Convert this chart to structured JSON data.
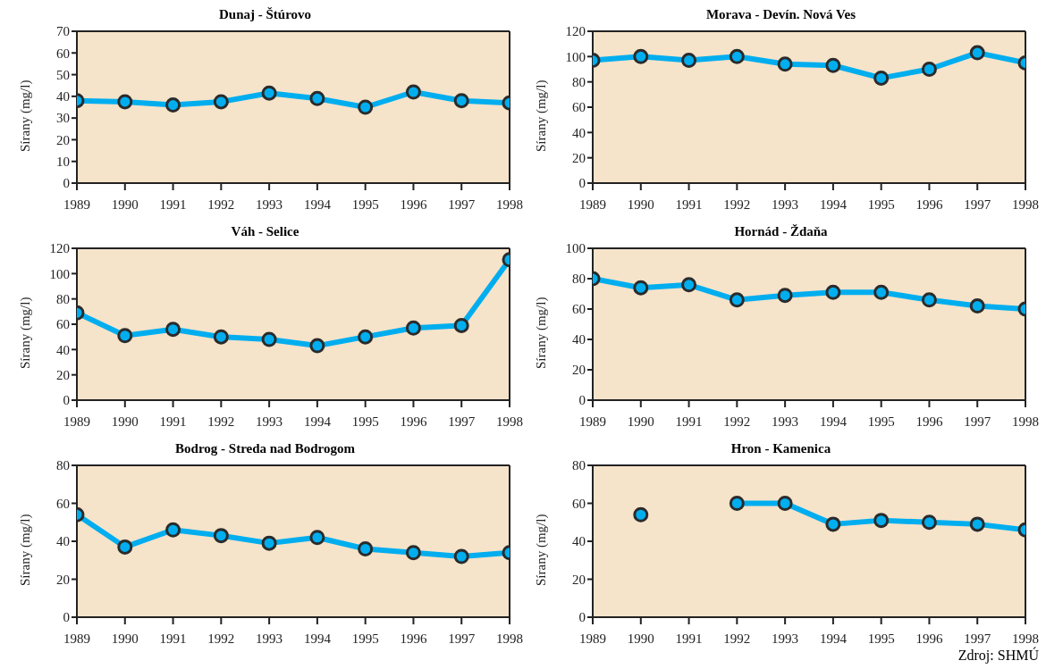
{
  "chart_data": [
    {
      "type": "line",
      "title": "Dunaj - Štúrovo",
      "ylabel": "Sírany (mg/l)",
      "x": [
        1989,
        1990,
        1991,
        1992,
        1993,
        1994,
        1995,
        1996,
        1997,
        1998
      ],
      "xlim": [
        1989,
        1998
      ],
      "xticks": [
        1989,
        1990,
        1991,
        1992,
        1993,
        1994,
        1995,
        1996,
        1997,
        1998
      ],
      "ylim": [
        0,
        70
      ],
      "yticks": [
        0,
        10,
        20,
        30,
        40,
        50,
        60,
        70
      ],
      "marker": "circle",
      "line_style": "solid",
      "grid": false,
      "legend": false,
      "series": [
        {
          "color": "#00aeef",
          "values": [
            38,
            37.5,
            36,
            37.5,
            41.5,
            39,
            35,
            42,
            38,
            37
          ]
        }
      ]
    },
    {
      "type": "line",
      "title": "Morava - Devín. Nová Ves",
      "ylabel": "Sírany (mg/l)",
      "x": [
        1989,
        1990,
        1991,
        1992,
        1993,
        1994,
        1995,
        1996,
        1997,
        1998
      ],
      "xlim": [
        1989,
        1998
      ],
      "xticks": [
        1989,
        1990,
        1991,
        1992,
        1993,
        1994,
        1995,
        1996,
        1997,
        1998
      ],
      "ylim": [
        0,
        120
      ],
      "yticks": [
        0,
        20,
        40,
        60,
        80,
        100,
        120
      ],
      "marker": "circle",
      "line_style": "solid",
      "grid": false,
      "legend": false,
      "series": [
        {
          "color": "#00aeef",
          "values": [
            97,
            100,
            97,
            100,
            94,
            93,
            83,
            90,
            103,
            95
          ]
        }
      ]
    },
    {
      "type": "line",
      "title": "Váh - Selice",
      "ylabel": "Sírany (mg/l)",
      "x": [
        1989,
        1990,
        1991,
        1992,
        1993,
        1994,
        1995,
        1996,
        1997,
        1998
      ],
      "xlim": [
        1989,
        1998
      ],
      "xticks": [
        1989,
        1990,
        1991,
        1992,
        1993,
        1994,
        1995,
        1996,
        1997,
        1998
      ],
      "ylim": [
        0,
        120
      ],
      "yticks": [
        0,
        20,
        40,
        60,
        80,
        100,
        120
      ],
      "marker": "circle",
      "line_style": "solid",
      "grid": false,
      "legend": false,
      "series": [
        {
          "color": "#00aeef",
          "values": [
            69,
            51,
            56,
            50,
            48,
            43,
            50,
            57,
            59,
            111
          ]
        }
      ]
    },
    {
      "type": "line",
      "title": "Hornád - Ždaňa",
      "ylabel": "Sírany (mg/l)",
      "x": [
        1989,
        1990,
        1991,
        1992,
        1993,
        1994,
        1995,
        1996,
        1997,
        1998
      ],
      "xlim": [
        1989,
        1998
      ],
      "xticks": [
        1989,
        1990,
        1991,
        1992,
        1993,
        1994,
        1995,
        1996,
        1997,
        1998
      ],
      "ylim": [
        0,
        100
      ],
      "yticks": [
        0,
        20,
        40,
        60,
        80,
        100
      ],
      "marker": "circle",
      "line_style": "solid",
      "grid": false,
      "legend": false,
      "series": [
        {
          "color": "#00aeef",
          "values": [
            80,
            74,
            76,
            66,
            69,
            71,
            71,
            66,
            62,
            60
          ]
        }
      ]
    },
    {
      "type": "line",
      "title": "Bodrog - Streda nad Bodrogom",
      "ylabel": "Sírany (mg/l)",
      "x": [
        1989,
        1990,
        1991,
        1992,
        1993,
        1994,
        1995,
        1996,
        1997,
        1998
      ],
      "xlim": [
        1989,
        1998
      ],
      "xticks": [
        1989,
        1990,
        1991,
        1992,
        1993,
        1994,
        1995,
        1996,
        1997,
        1998
      ],
      "ylim": [
        0,
        80
      ],
      "yticks": [
        0,
        20,
        40,
        60,
        80
      ],
      "marker": "circle",
      "line_style": "solid",
      "grid": false,
      "legend": false,
      "series": [
        {
          "color": "#00aeef",
          "values": [
            54,
            37,
            46,
            43,
            39,
            42,
            36,
            34,
            32,
            34
          ]
        }
      ]
    },
    {
      "type": "line",
      "title": "Hron - Kamenica",
      "ylabel": "Sírany (mg/l)",
      "xlim": [
        1989,
        1998
      ],
      "xticks": [
        1989,
        1990,
        1991,
        1992,
        1993,
        1994,
        1995,
        1996,
        1997,
        1998
      ],
      "ylim": [
        0,
        80
      ],
      "yticks": [
        0,
        20,
        40,
        60,
        80
      ],
      "marker": "circle",
      "line_style": "solid",
      "grid": false,
      "legend": false,
      "annotations": [
        "Zdroj: SHMÚ"
      ],
      "series": [
        {
          "color": "#00aeef",
          "x": [
            1990,
            1991,
            1992,
            1993,
            1994,
            1995,
            1996,
            1997,
            1998
          ],
          "values": [
            54,
            null,
            60,
            60,
            49,
            51,
            50,
            49,
            46
          ]
        }
      ]
    }
  ]
}
